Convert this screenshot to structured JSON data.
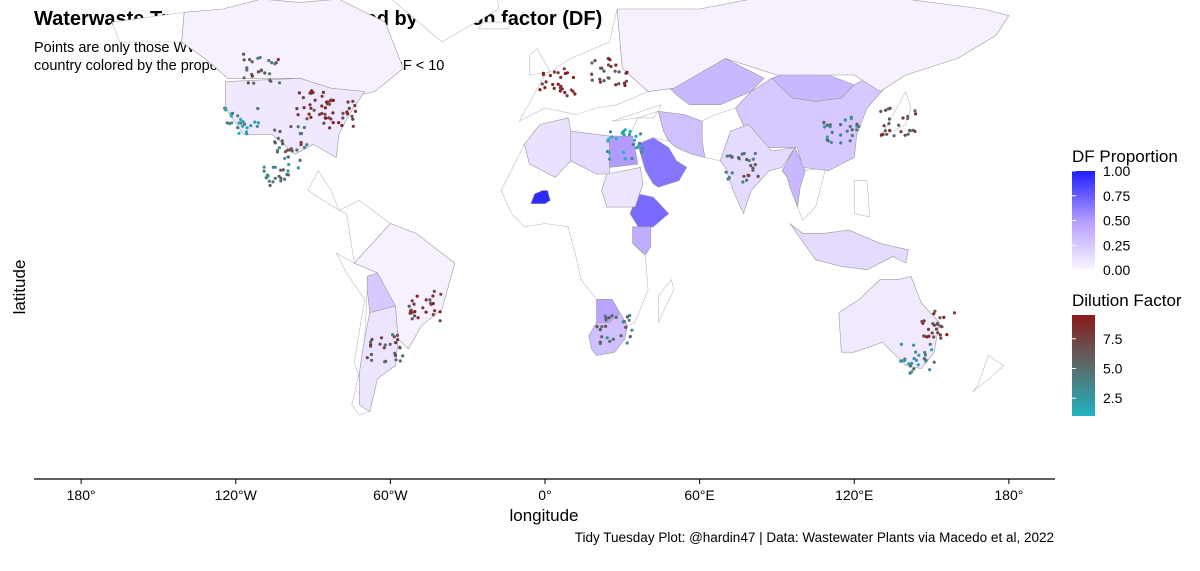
{
  "chart_data": {
    "type": "scatter",
    "title": "Waterwaste Treatment Plants colored by dilution factor (DF)",
    "subtitle": [
      "Points are only those WWTP with DF < 10,",
      "country colored by the proportion of WWTP which have DF < 10"
    ],
    "xlabel": "longitude",
    "ylabel": "latitude",
    "caption": "Tidy Tuesday Plot: @hardin47 | Data: Wastewater Plants via Macedo et al, 2022",
    "xlim": [
      -180,
      180
    ],
    "ylim": [
      -58,
      84
    ],
    "x_ticks": [
      {
        "value": -180,
        "label": "180°"
      },
      {
        "value": -120,
        "label": "120°W"
      },
      {
        "value": -60,
        "label": "60°W"
      },
      {
        "value": 0,
        "label": "0°"
      },
      {
        "value": 60,
        "label": "60°E"
      },
      {
        "value": 120,
        "label": "120°E"
      },
      {
        "value": 180,
        "label": "180°"
      }
    ],
    "legend_fill": {
      "title": "DF Proportion",
      "labels": [
        "1.00",
        "0.75",
        "0.50",
        "0.25",
        "0.00"
      ],
      "colors": [
        "#1f1fff",
        "#fbf7ff"
      ]
    },
    "legend_color": {
      "title": "Dilution Factor",
      "labels": [
        "7.5",
        "5.0",
        "2.5"
      ],
      "colors": [
        "#8b1a1a",
        "#20b2c2"
      ]
    },
    "country_fills": [
      {
        "name": "Burkina Faso",
        "value": 0.95
      },
      {
        "name": "Ethiopia",
        "value": 0.7
      },
      {
        "name": "Saudi Arabia",
        "value": 0.65
      },
      {
        "name": "Egypt",
        "value": 0.5
      },
      {
        "name": "Kazakhstan",
        "value": 0.35
      },
      {
        "name": "Mongolia",
        "value": 0.35
      },
      {
        "name": "Iran",
        "value": 0.3
      },
      {
        "name": "Myanmar",
        "value": 0.35
      },
      {
        "name": "Kenya",
        "value": 0.4
      },
      {
        "name": "Botswana",
        "value": 0.45
      },
      {
        "name": "South Africa",
        "value": 0.3
      },
      {
        "name": "Bolivia",
        "value": 0.25
      },
      {
        "name": "China",
        "value": 0.25
      },
      {
        "name": "India",
        "value": 0.15
      },
      {
        "name": "Algeria",
        "value": 0.12
      },
      {
        "name": "Libya",
        "value": 0.15
      },
      {
        "name": "Sudan",
        "value": 0.1
      },
      {
        "name": "Indonesia",
        "value": 0.15
      },
      {
        "name": "Argentina",
        "value": 0.1
      },
      {
        "name": "Russia",
        "value": 0.03
      },
      {
        "name": "Canada",
        "value": 0.03
      },
      {
        "name": "United States",
        "value": 0.08
      },
      {
        "name": "Brazil",
        "value": 0.03
      },
      {
        "name": "Australia",
        "value": 0.07
      }
    ],
    "point_clusters": [
      {
        "region": "Western US",
        "lon": -118,
        "lat": 36,
        "df": 3.0
      },
      {
        "region": "Texas",
        "lon": -98,
        "lat": 31,
        "df": 5.5
      },
      {
        "region": "Midwest US",
        "lon": -90,
        "lat": 41,
        "df": 8.0
      },
      {
        "region": "Eastern US",
        "lon": -80,
        "lat": 38,
        "df": 8.5
      },
      {
        "region": "Mexico",
        "lon": -102,
        "lat": 21,
        "df": 4.5
      },
      {
        "region": "Canada",
        "lon": -110,
        "lat": 52,
        "df": 6.0
      },
      {
        "region": "Brazil",
        "lon": -47,
        "lat": -20,
        "df": 8.0
      },
      {
        "region": "Argentina",
        "lon": -62,
        "lat": -33,
        "df": 6.5
      },
      {
        "region": "Western Europe",
        "lon": 5,
        "lat": 48,
        "df": 8.5
      },
      {
        "region": "Eastern Europe",
        "lon": 25,
        "lat": 51,
        "df": 7.5
      },
      {
        "region": "Egypt Nile",
        "lon": 31,
        "lat": 29,
        "df": 2.0
      },
      {
        "region": "South Africa",
        "lon": 27,
        "lat": -27,
        "df": 5.0
      },
      {
        "region": "India",
        "lon": 77,
        "lat": 22,
        "df": 5.5
      },
      {
        "region": "Eastern China",
        "lon": 115,
        "lat": 33,
        "df": 4.0
      },
      {
        "region": "Japan",
        "lon": 137,
        "lat": 36,
        "df": 7.0
      },
      {
        "region": "Southeast Australia",
        "lon": 145,
        "lat": -36,
        "df": 3.5
      },
      {
        "region": "Eastern Australia",
        "lon": 152,
        "lat": -26,
        "df": 7.5
      }
    ]
  }
}
